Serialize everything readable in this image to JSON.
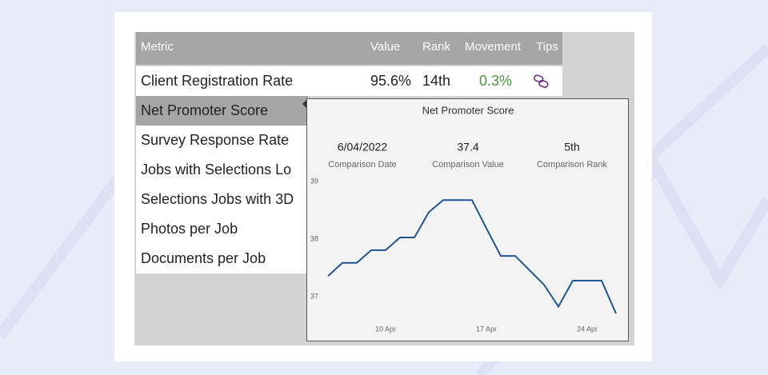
{
  "table": {
    "header": [
      "Metric",
      "Value",
      "Rank",
      "Movement",
      "Tips"
    ],
    "rows": [
      [
        "Client Registration Rate",
        "95.6%",
        "14th",
        "0.3%"
      ],
      [
        "Net Promoter Score"
      ],
      [
        "Survey Response Rate"
      ],
      [
        "Jobs with Selections Lo"
      ],
      [
        "Selections Jobs with 3D"
      ],
      [
        "Photos per Job"
      ],
      [
        "Documents per Job"
      ]
    ]
  },
  "chart_data": {
    "type": "line",
    "title": "Net Promoter Score",
    "stats": [
      {
        "value": "6/04/2022",
        "label": "Comparison Date"
      },
      {
        "value": "37.4",
        "label": "Comparison Value"
      },
      {
        "value": "5th",
        "label": "Comparison Rank"
      }
    ],
    "x": [
      "6 Apr",
      "7 Apr",
      "8 Apr",
      "9 Apr",
      "10 Apr",
      "11 Apr",
      "12 Apr",
      "13 Apr",
      "14 Apr",
      "15 Apr",
      "16 Apr",
      "17 Apr",
      "18 Apr",
      "19 Apr",
      "20 Apr",
      "21 Apr",
      "22 Apr",
      "23 Apr",
      "24 Apr",
      "25 Apr",
      "26 Apr"
    ],
    "values": [
      37.36,
      37.59,
      37.59,
      37.81,
      37.81,
      38.03,
      38.03,
      38.47,
      38.68,
      38.68,
      38.68,
      38.19,
      37.71,
      37.71,
      37.46,
      37.21,
      36.83,
      37.28,
      37.28,
      37.28,
      36.71
    ],
    "color": "#1f5591",
    "ylim": [
      36.6,
      39.1
    ],
    "yticks": [
      37,
      38,
      39
    ],
    "xticks": [
      "10 Apr",
      "17 Apr",
      "24 Apr"
    ]
  }
}
